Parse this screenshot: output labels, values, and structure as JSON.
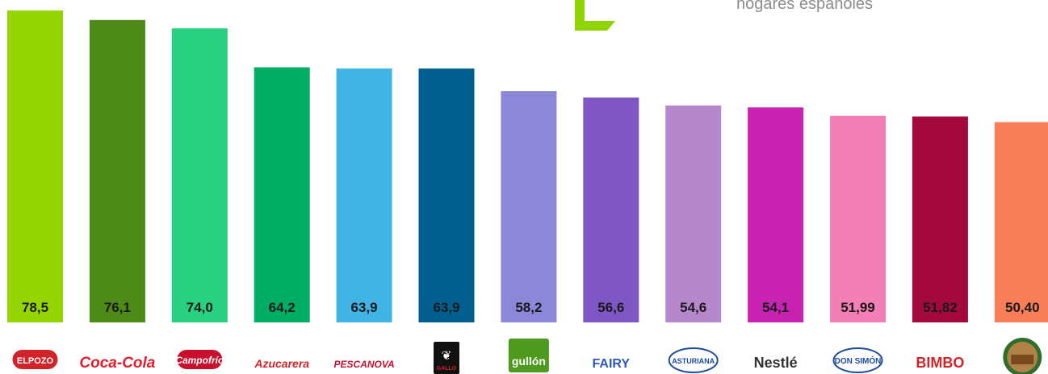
{
  "header": {
    "subtitle_fragment": "hogares españoles",
    "accent_color": "#8fd400"
  },
  "chart_data": {
    "type": "bar",
    "categories": [
      "ElPozo",
      "Coca-Cola",
      "Campofrío",
      "Azucarera",
      "Pescanova",
      "Gallo",
      "Gullón",
      "Fairy",
      "Central Lechera Asturiana",
      "Nestlé",
      "Don Simón",
      "Bimbo",
      "Casa Tarradellas"
    ],
    "values": [
      78.5,
      76.1,
      74.0,
      64.2,
      63.9,
      63.9,
      58.2,
      56.6,
      54.6,
      54.1,
      51.99,
      51.82,
      50.4
    ],
    "value_labels": [
      "78,5",
      "76,1",
      "74,0",
      "64,2",
      "63,9",
      "63,9",
      "58,2",
      "56,6",
      "54,6",
      "54,1",
      "51,99",
      "51,82",
      "50,40"
    ],
    "colors": [
      "#94d500",
      "#4d8a17",
      "#27d17f",
      "#00ae63",
      "#3fb4e5",
      "#005f8f",
      "#8c87d8",
      "#7e57c5",
      "#b787cb",
      "#c822b1",
      "#f47fb6",
      "#a3093c",
      "#f87e57"
    ],
    "title": "",
    "xlabel": "",
    "ylabel": "",
    "grid": false,
    "legend": "none"
  },
  "logos": [
    {
      "icon": "elpozo-logo",
      "text": "ELPOZO",
      "color": "#d2232a"
    },
    {
      "icon": "coca-cola-logo",
      "text": "Coca-Cola",
      "color": "#e41e2b"
    },
    {
      "icon": "campofrio-logo",
      "text": "Campofrío",
      "color": "#c8102e"
    },
    {
      "icon": "azucarera-logo",
      "text": "Azucarera",
      "color": "#d2232a"
    },
    {
      "icon": "pescanova-logo",
      "text": "PESCANOVA",
      "color": "#c8102e"
    },
    {
      "icon": "gallo-logo",
      "text": "GALLO",
      "color": "#d2232a"
    },
    {
      "icon": "gullon-logo",
      "text": "gullón",
      "color": "#4d9a1f"
    },
    {
      "icon": "fairy-logo",
      "text": "FAIRY",
      "color": "#2f57b5"
    },
    {
      "icon": "asturiana-logo",
      "text": "ASTURIANA",
      "color": "#1f4c9a"
    },
    {
      "icon": "nestle-logo",
      "text": "Nestlé",
      "color": "#333333"
    },
    {
      "icon": "don-simon-logo",
      "text": "DON SIMÓN",
      "color": "#1f4c9a"
    },
    {
      "icon": "bimbo-logo",
      "text": "BIMBO",
      "color": "#d2232a"
    },
    {
      "icon": "casa-tarradellas-logo",
      "text": "",
      "color": "#7a4a1e"
    }
  ]
}
